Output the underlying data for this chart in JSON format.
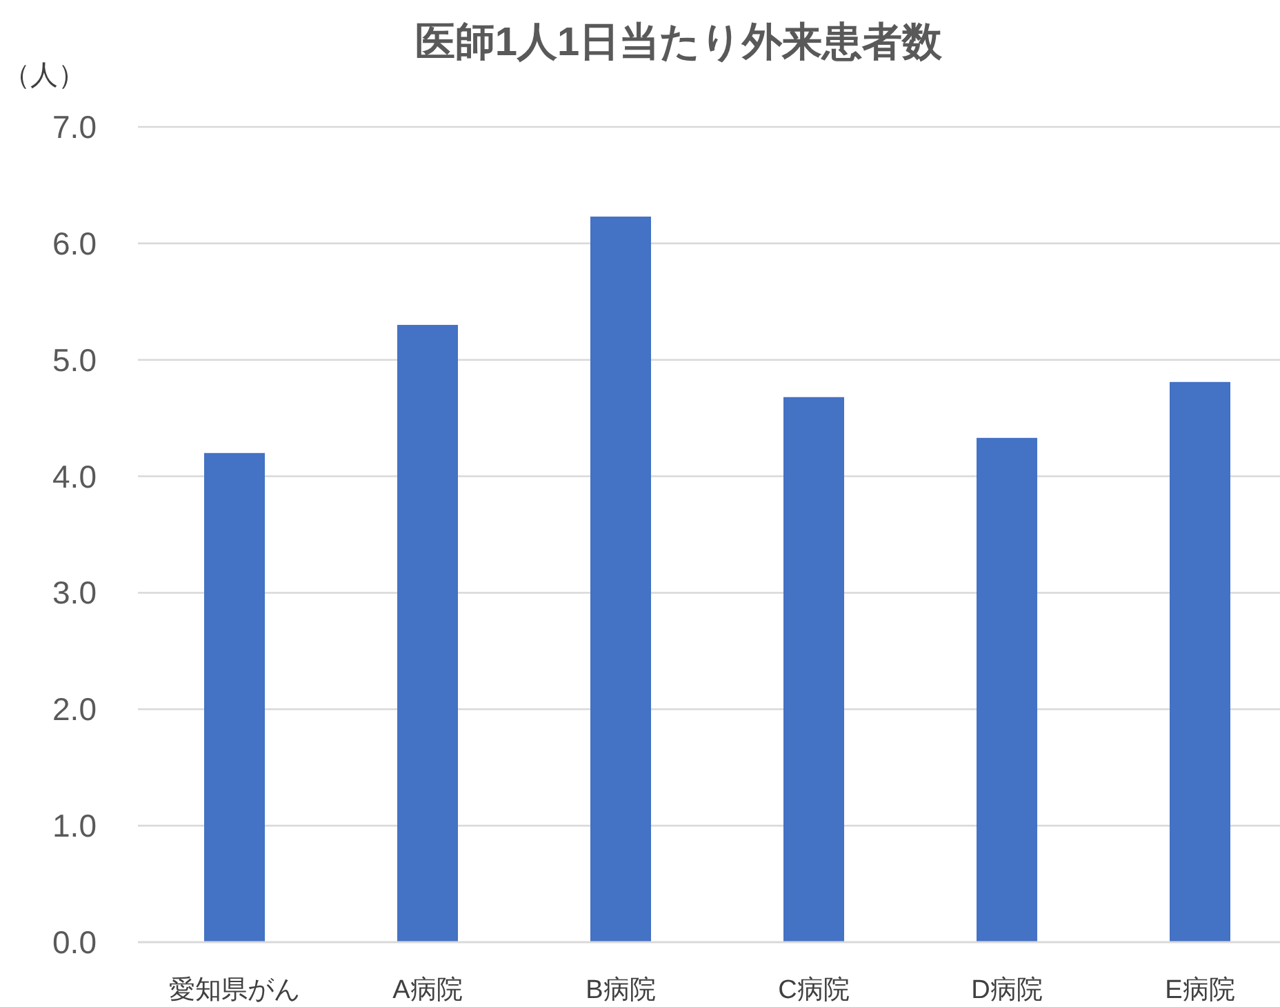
{
  "chart_data": {
    "type": "bar",
    "title": "医師1人1日当たり外来患者数",
    "ylabel": "（人）",
    "categories": [
      "愛知県がん",
      "A病院",
      "B病院",
      "C病院",
      "D病院",
      "E病院"
    ],
    "values": [
      4.2,
      5.3,
      6.23,
      4.68,
      4.33,
      4.81
    ],
    "color": "#4472c4",
    "ylim": [
      0,
      7
    ],
    "yticks": [
      {
        "value": 0,
        "label": "0.0"
      },
      {
        "value": 1,
        "label": "1.0"
      },
      {
        "value": 2,
        "label": "2.0"
      },
      {
        "value": 3,
        "label": "3.0"
      },
      {
        "value": 4,
        "label": "4.0"
      },
      {
        "value": 5,
        "label": "5.0"
      },
      {
        "value": 6,
        "label": "6.0"
      },
      {
        "value": 7,
        "label": "7.0"
      }
    ],
    "grid": "y"
  }
}
